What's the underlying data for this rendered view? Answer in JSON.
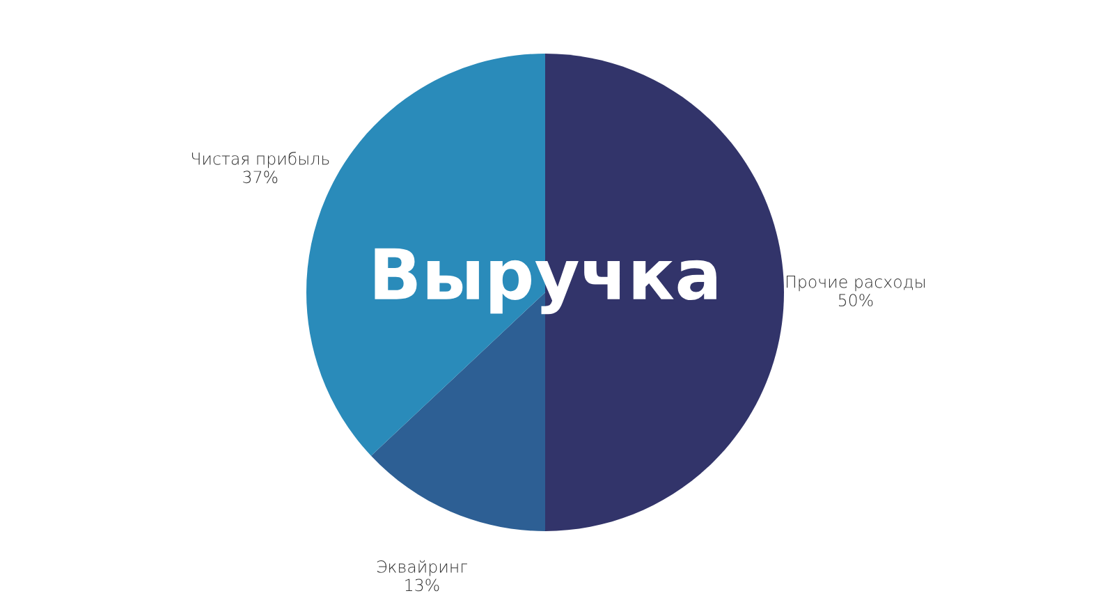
{
  "chart_data": {
    "type": "pie",
    "title": "Выручка",
    "categories": [
      "Прочие расходы",
      "Эквайринг",
      "Чистая прибыль"
    ],
    "values": [
      50,
      13,
      37
    ],
    "value_labels": [
      "50%",
      "13%",
      "37%"
    ],
    "colors": [
      "#32346a",
      "#2d5f94",
      "#2a8bba"
    ]
  }
}
